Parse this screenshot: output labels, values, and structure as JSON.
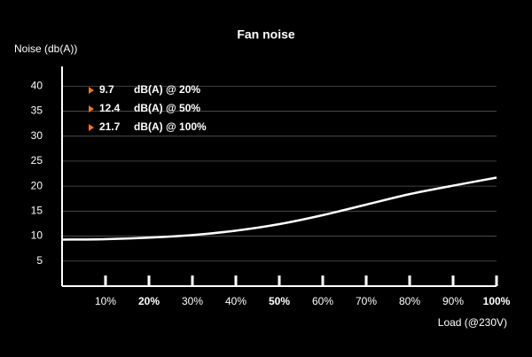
{
  "chart_data": {
    "type": "line",
    "title": "Fan noise",
    "y_label": "Noise (db(A))",
    "x_label": "Load (@230V)",
    "x": [
      0,
      10,
      20,
      30,
      40,
      50,
      60,
      70,
      80,
      90,
      100
    ],
    "series": [
      {
        "color": "#ffffff",
        "values": [
          9.3,
          9.4,
          9.7,
          10.2,
          11.1,
          12.4,
          14.2,
          16.3,
          18.4,
          20.1,
          21.7
        ]
      }
    ],
    "xlim": [
      0,
      100
    ],
    "xticks": [
      {
        "value": 10,
        "label": "10%"
      },
      {
        "value": 20,
        "label": "20%"
      },
      {
        "value": 30,
        "label": "30%"
      },
      {
        "value": 40,
        "label": "40%"
      },
      {
        "value": 50,
        "label": "50%"
      },
      {
        "value": 60,
        "label": "60%"
      },
      {
        "value": 70,
        "label": "70%"
      },
      {
        "value": 80,
        "label": "80%"
      },
      {
        "value": 90,
        "label": "90%"
      },
      {
        "value": 100,
        "label": "100%"
      }
    ],
    "ylim": [
      0,
      45
    ],
    "yticks": [
      5,
      10,
      15,
      20,
      25,
      30,
      35,
      40
    ],
    "grid": true,
    "annotations": [
      {
        "value": 9.7,
        "text": "dB(A) @ 20%"
      },
      {
        "value": 12.4,
        "text": "dB(A) @ 50%"
      },
      {
        "value": 21.7,
        "text": "dB(A) @ 100%"
      }
    ],
    "annotation_color": "#e8772e"
  }
}
